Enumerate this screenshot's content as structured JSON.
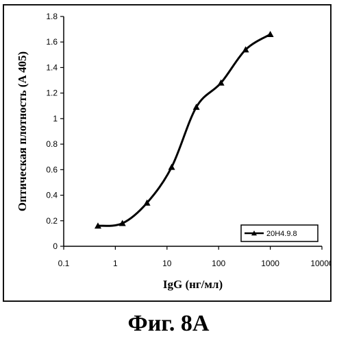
{
  "figure": {
    "caption": "Фиг. 8A"
  },
  "chart_data": {
    "type": "line",
    "xscale": "log",
    "xlim": [
      0.1,
      10000
    ],
    "ylim": [
      0,
      1.8
    ],
    "xticks": [
      "0.1",
      "1",
      "10",
      "100",
      "1000",
      "10000"
    ],
    "yticks": [
      "0",
      "0.2",
      "0.4",
      "0.6",
      "0.8",
      "1",
      "1.2",
      "1.4",
      "1.6",
      "1.8"
    ],
    "xlabel": "IgG (нг/мл)",
    "ylabel": "Оптическая плотность (A 405)",
    "grid": false,
    "legend_position": "bottom-right",
    "series": [
      {
        "name": "20H4.9.8",
        "color": "#000000",
        "marker": "triangle",
        "x": [
          0.46,
          1.37,
          4.1,
          12.3,
          37,
          111,
          333,
          1000
        ],
        "y": [
          0.16,
          0.18,
          0.34,
          0.62,
          1.09,
          1.28,
          1.54,
          1.66
        ]
      }
    ]
  }
}
